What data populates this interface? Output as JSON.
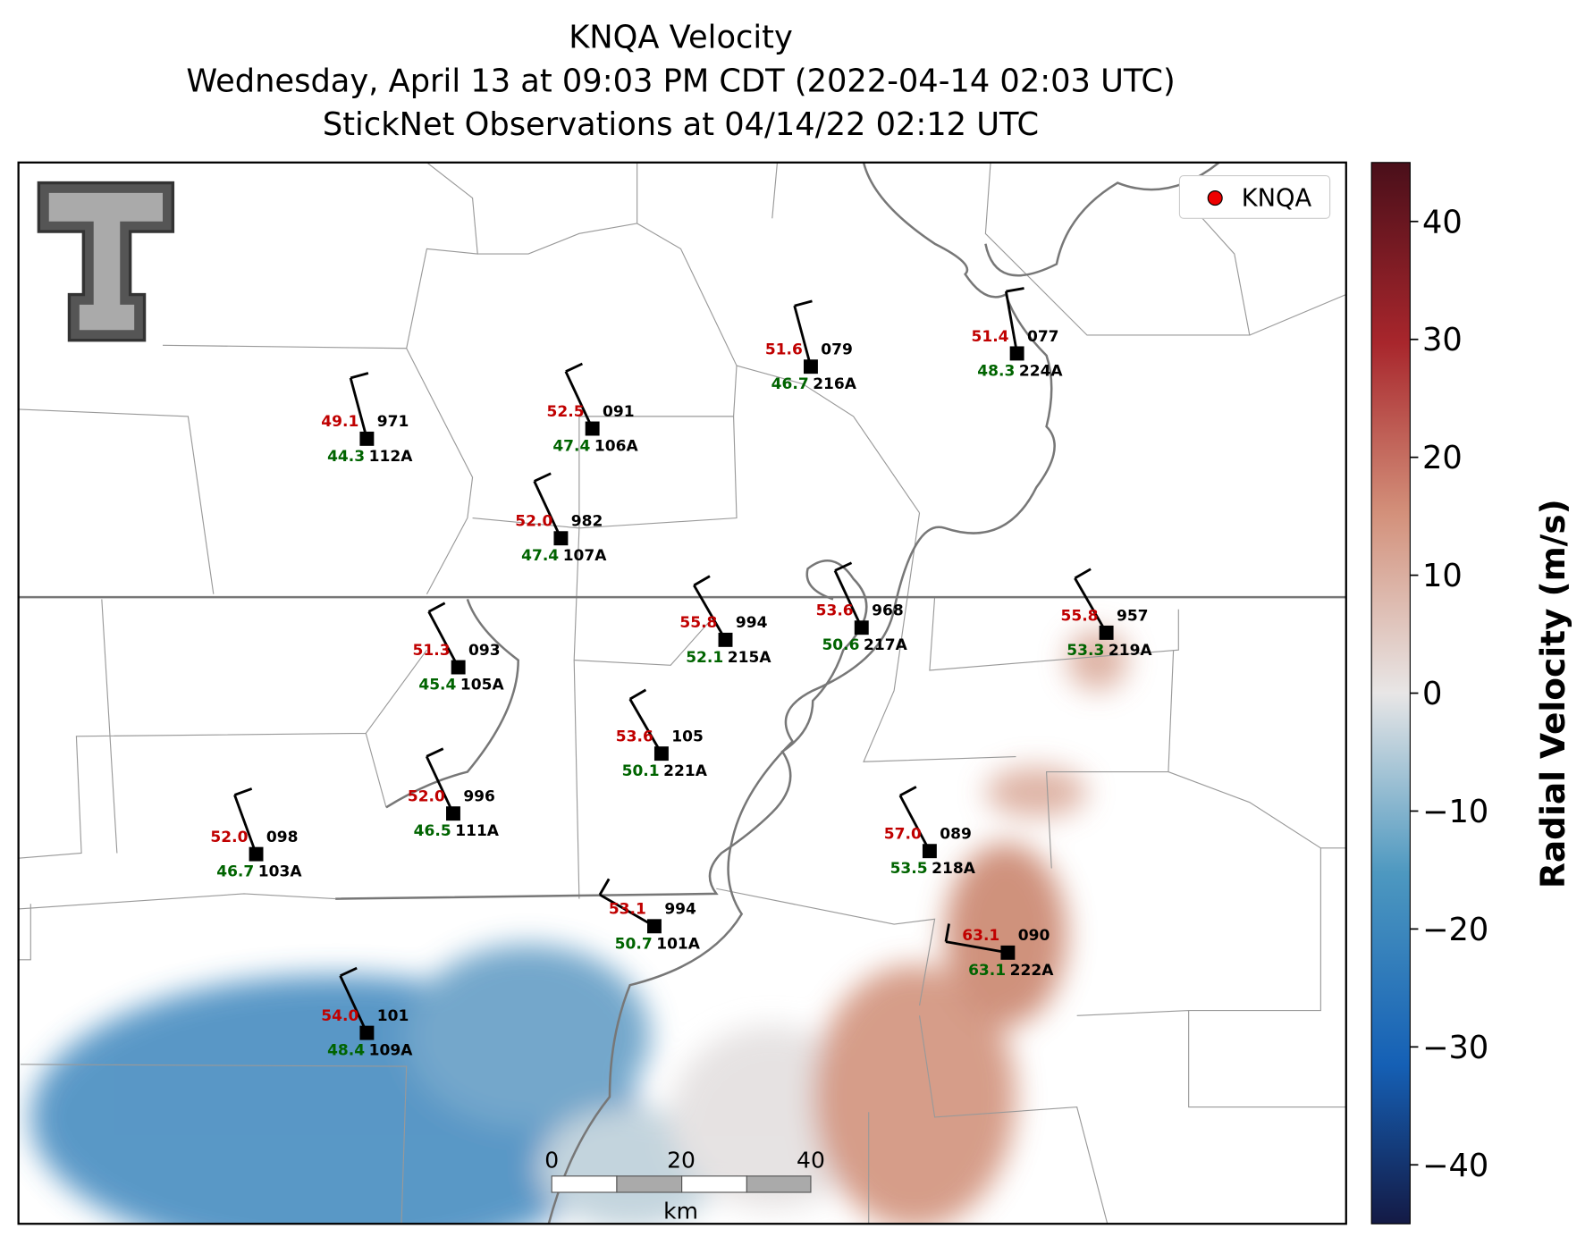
{
  "title": [
    "KNQA Velocity",
    "Wednesday, April 13 at 09:03 PM CDT (2022-04-14 02:03 UTC)",
    "StickNet Observations at 04/14/22 02:12 UTC"
  ],
  "legend": "KNQA",
  "stations": [
    {
      "temp": "49.1",
      "dew": "44.3",
      "pres": "971",
      "id": "112A"
    },
    {
      "temp": "52.5",
      "dew": "47.4",
      "pres": "091",
      "id": "106A"
    },
    {
      "temp": "51.6",
      "dew": "46.7",
      "pres": "079",
      "id": "216A"
    },
    {
      "temp": "51.4",
      "dew": "48.3",
      "pres": "077",
      "id": "224A"
    },
    {
      "temp": "52.0",
      "dew": "47.4",
      "pres": "982",
      "id": "107A"
    },
    {
      "temp": "55.8",
      "dew": "52.1",
      "pres": "994",
      "id": "215A"
    },
    {
      "temp": "53.6",
      "dew": "50.6",
      "pres": "968",
      "id": "217A"
    },
    {
      "temp": "55.8",
      "dew": "53.3",
      "pres": "957",
      "id": "219A"
    },
    {
      "temp": "51.3",
      "dew": "45.4",
      "pres": "093",
      "id": "105A"
    },
    {
      "temp": "53.6",
      "dew": "50.1",
      "pres": "105",
      "id": "221A"
    },
    {
      "temp": "52.0",
      "dew": "46.5",
      "pres": "996",
      "id": "111A"
    },
    {
      "temp": "52.0",
      "dew": "46.7",
      "pres": "098",
      "id": "103A"
    },
    {
      "temp": "57.0",
      "dew": "53.5",
      "pres": "089",
      "id": "218A"
    },
    {
      "temp": "53.1",
      "dew": "50.7",
      "pres": "994",
      "id": "101A"
    },
    {
      "temp": "63.1",
      "dew": "63.1",
      "pres": "090",
      "id": "222A"
    },
    {
      "temp": "54.0",
      "dew": "48.4",
      "pres": "101",
      "id": "109A"
    }
  ],
  "scale_bar": {
    "ticks": [
      0,
      20,
      40
    ],
    "unit": "km"
  },
  "colorbar": {
    "label": "Radial Velocity (m/s)",
    "lim": [
      -45,
      45
    ],
    "ticks": [
      40,
      30,
      20,
      10,
      0,
      {
        "value": -10,
        "label": "−10"
      },
      {
        "value": -20,
        "label": "−20"
      },
      {
        "value": -30,
        "label": "−30"
      },
      {
        "value": -40,
        "label": "−40"
      }
    ]
  }
}
